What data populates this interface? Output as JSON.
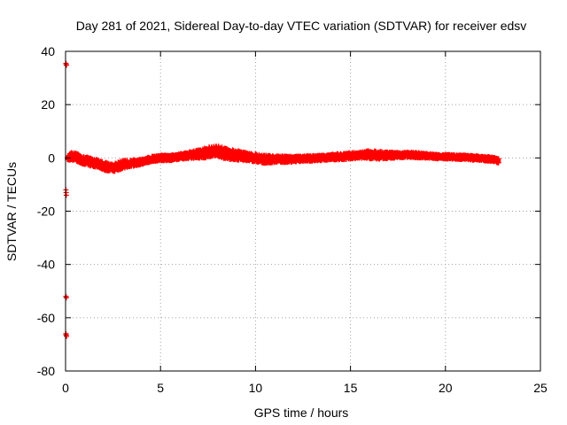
{
  "chart_data": {
    "type": "scatter",
    "title": "Day 281 of 2021, Sidereal Day-to-day VTEC variation (SDTVAR) for receiver edsv",
    "xlabel": "GPS time / hours",
    "ylabel": "SDTVAR / TECUs",
    "xlim": [
      0,
      25
    ],
    "ylim": [
      -80,
      40
    ],
    "xticks": [
      0,
      5,
      10,
      15,
      20,
      25
    ],
    "yticks": [
      -80,
      -60,
      -40,
      -20,
      0,
      20,
      40
    ],
    "xtick_labels": [
      "0",
      "5",
      "10",
      "15",
      "20",
      "25"
    ],
    "ytick_labels": [
      "-80",
      "-60",
      "-40",
      "-20",
      "0",
      "20",
      "40"
    ],
    "grid": true,
    "marker": "plus",
    "color": "#ff0000",
    "series": [
      {
        "name": "SDTVAR",
        "trend": {
          "x": [
            0.1,
            0.3,
            0.5,
            0.8,
            1.0,
            1.3,
            1.6,
            2.0,
            2.3,
            2.6,
            3.0,
            3.5,
            4.0,
            4.5,
            5.0,
            5.5,
            6.0,
            6.5,
            7.0,
            7.5,
            8.0,
            8.5,
            9.0,
            9.5,
            10.0,
            10.5,
            11.0,
            11.5,
            12.0,
            12.5,
            13.0,
            13.5,
            14.0,
            14.5,
            15.0,
            15.5,
            16.0,
            16.5,
            17.0,
            17.5,
            18.0,
            18.5,
            19.0,
            19.5,
            20.0,
            20.5,
            21.0,
            21.5,
            22.0,
            22.5,
            22.8
          ],
          "y": [
            0.0,
            0.5,
            0.5,
            -0.5,
            -1.0,
            -1.5,
            -2.0,
            -3.0,
            -3.5,
            -3.5,
            -2.5,
            -2.0,
            -1.5,
            -0.5,
            0.0,
            0.0,
            0.5,
            1.0,
            1.5,
            2.0,
            2.5,
            1.5,
            1.0,
            0.5,
            0.0,
            -0.5,
            -0.5,
            -0.5,
            -0.5,
            -0.3,
            -0.2,
            0.0,
            0.3,
            0.5,
            0.8,
            1.0,
            1.2,
            1.0,
            1.0,
            1.0,
            1.2,
            1.0,
            0.8,
            0.5,
            0.5,
            0.3,
            0.2,
            0.0,
            -0.2,
            -0.5,
            -1.0
          ],
          "spread": [
            0.8,
            1.5,
            1.5,
            1.5,
            1.5,
            1.5,
            1.5,
            1.5,
            1.5,
            1.5,
            1.5,
            1.2,
            1.0,
            1.0,
            1.0,
            1.0,
            1.0,
            1.2,
            1.5,
            2.0,
            2.0,
            2.0,
            1.8,
            1.5,
            1.5,
            1.5,
            1.2,
            1.2,
            1.0,
            1.0,
            1.0,
            1.0,
            1.0,
            1.2,
            1.2,
            1.2,
            1.5,
            1.5,
            1.2,
            1.0,
            1.0,
            1.0,
            0.8,
            0.8,
            0.8,
            0.8,
            0.8,
            0.8,
            0.8,
            0.8,
            1.0
          ]
        },
        "outliers": [
          {
            "x": 0.02,
            "y": 35.5
          },
          {
            "x": 0.03,
            "y": 35.0
          },
          {
            "x": 0.05,
            "y": 34.8
          },
          {
            "x": 0.02,
            "y": -12.0
          },
          {
            "x": 0.03,
            "y": -13.0
          },
          {
            "x": 0.04,
            "y": -14.0
          },
          {
            "x": 0.02,
            "y": -52.0
          },
          {
            "x": 0.04,
            "y": -52.5
          },
          {
            "x": 0.02,
            "y": -66.0
          },
          {
            "x": 0.03,
            "y": -66.5
          },
          {
            "x": 0.05,
            "y": -67.0
          }
        ]
      }
    ]
  }
}
